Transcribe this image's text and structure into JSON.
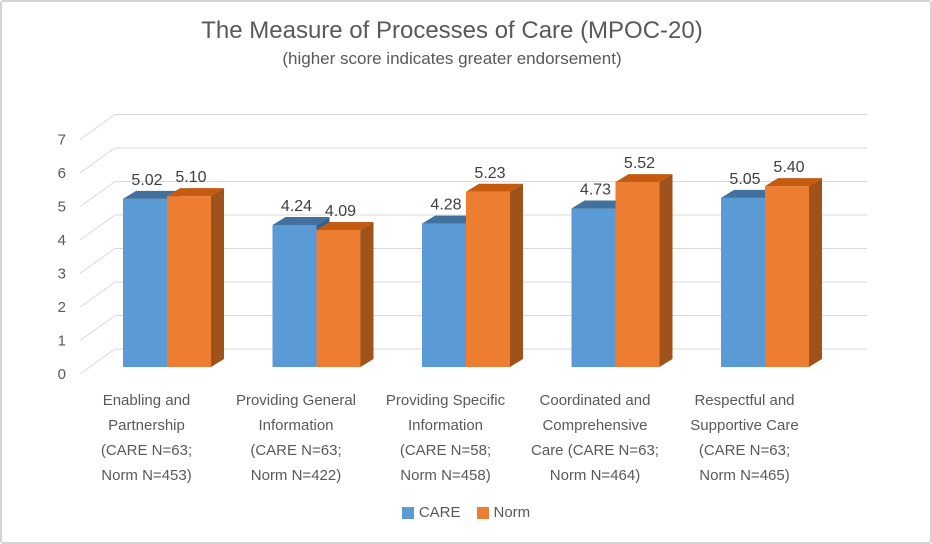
{
  "chart_data": {
    "type": "bar",
    "variant": "3d-clustered-column",
    "title": "The Measure of Processes of Care (MPOC-20)",
    "subtitle": "(higher score indicates greater endorsement)",
    "categories": [
      "Enabling and\nPartnership\n(CARE N=63;\nNorm N=453)",
      "Providing General\nInformation\n(CARE N=63;\nNorm N=422)",
      "Providing Specific\nInformation\n(CARE N=58;\nNorm N=458)",
      "Coordinated and\nComprehensive\nCare (CARE N=63;\nNorm N=464)",
      "Respectful and\nSupportive Care\n(CARE N=63;\nNorm N=465)"
    ],
    "series": [
      {
        "name": "CARE",
        "values": [
          5.02,
          4.24,
          4.28,
          4.73,
          5.05
        ],
        "labels": [
          "5.02",
          "4.24",
          "4.28",
          "4.73",
          "5.05"
        ],
        "color": "#5B9BD5",
        "color_top": "#41719C",
        "color_side": "#35618E"
      },
      {
        "name": "Norm",
        "values": [
          5.1,
          4.09,
          5.23,
          5.52,
          5.4
        ],
        "labels": [
          "5.10",
          "4.09",
          "5.23",
          "5.52",
          "5.40"
        ],
        "color": "#ED7D31",
        "color_top": "#C55A11",
        "color_side": "#A0521B"
      }
    ],
    "ylim": [
      0,
      7
    ],
    "ytick_interval": 1,
    "yticks": [
      "0",
      "1",
      "2",
      "3",
      "4",
      "5",
      "6",
      "7"
    ],
    "grid": true,
    "legend_position": "bottom",
    "gridline_color": "#D9D9D9",
    "text_color": "#595959",
    "value_label_color": "#404040"
  }
}
